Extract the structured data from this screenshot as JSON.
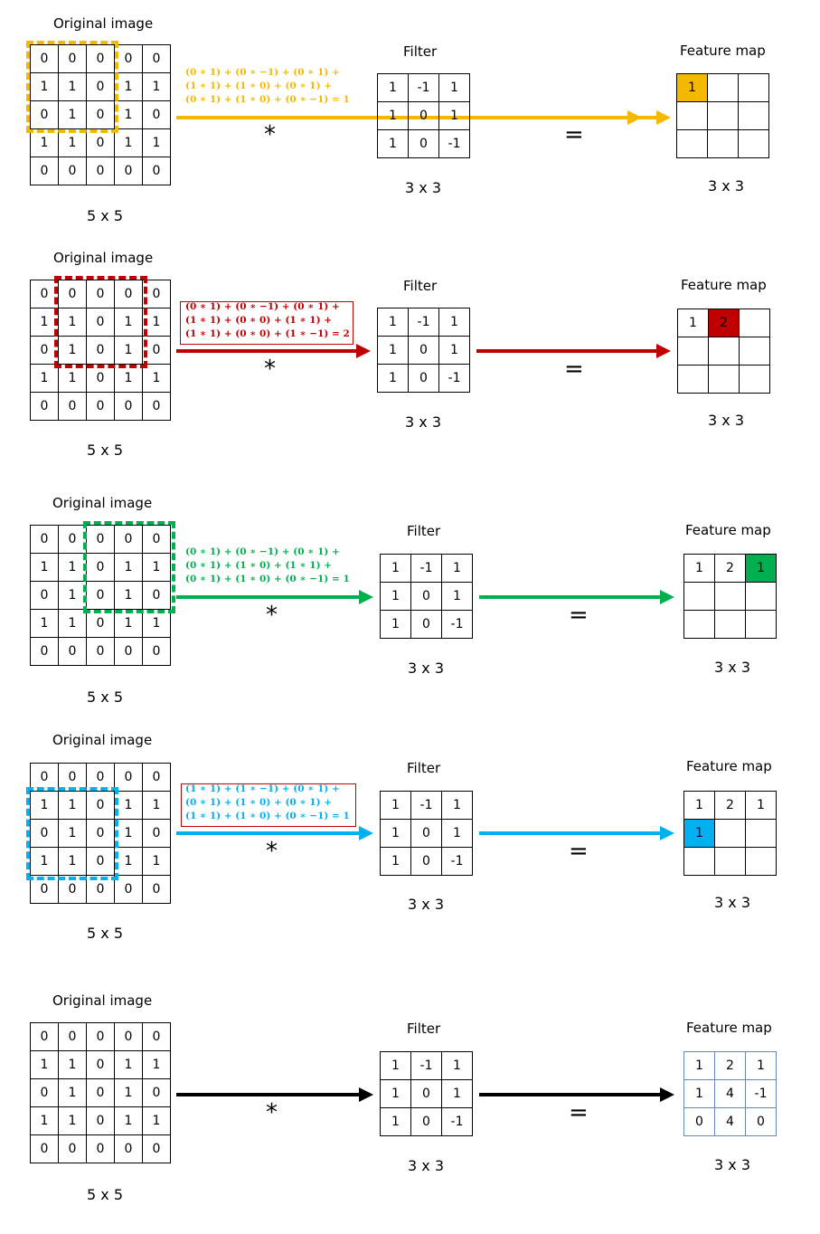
{
  "labels": {
    "original": "Original image",
    "filter": "Filter",
    "feature": "Feature map",
    "dim5": "5 x 5",
    "dim3": "3 x 3",
    "mult": "*",
    "equals": "="
  },
  "image": [
    [
      0,
      0,
      0,
      0,
      0
    ],
    [
      1,
      1,
      0,
      1,
      1
    ],
    [
      0,
      1,
      0,
      1,
      0
    ],
    [
      1,
      1,
      0,
      1,
      1
    ],
    [
      0,
      0,
      0,
      0,
      0
    ]
  ],
  "filter": [
    [
      1,
      -1,
      1
    ],
    [
      1,
      0,
      1
    ],
    [
      1,
      0,
      -1
    ]
  ],
  "colors": {
    "orange": "#f5b800",
    "red": "#c00000",
    "green": "#00b050",
    "blue": "#00b0f0",
    "black": "#000000"
  },
  "steps": [
    {
      "color_key": "orange",
      "equation": [
        "(0 ∗ 1) + (0 ∗ −1) + (0 ∗ 1) +",
        "(1 ∗ 1) + (1 ∗ 0) + (0 ∗ 1) +",
        "(0 ∗ 1) + (1 ∗ 0) + (0 ∗ −1) = 1"
      ],
      "boxed": false,
      "feature_map": [
        [
          "1",
          "",
          ""
        ],
        [
          "",
          "",
          ""
        ],
        [
          "",
          "",
          ""
        ]
      ],
      "highlight_cell": [
        0,
        0
      ],
      "window": [
        0,
        0
      ]
    },
    {
      "color_key": "red",
      "equation": [
        "(0 ∗ 1) + (0 ∗ −1) + (0 ∗ 1) +",
        "(1 ∗ 1) + (0 ∗ 0) + (1 ∗ 1) +",
        "(1 ∗ 1) + (0 ∗ 0) + (1 ∗ −1) = 2"
      ],
      "boxed": true,
      "feature_map": [
        [
          "1",
          "2",
          ""
        ],
        [
          "",
          "",
          ""
        ],
        [
          "",
          "",
          ""
        ]
      ],
      "highlight_cell": [
        0,
        1
      ],
      "window": [
        0,
        1
      ]
    },
    {
      "color_key": "green",
      "equation": [
        "(0 ∗ 1) + (0 ∗ −1) + (0 ∗ 1) +",
        "(0 ∗ 1) + (1 ∗ 0) + (1 ∗ 1) +",
        "(0 ∗ 1) + (1 ∗ 0) + (0 ∗ −1) = 1"
      ],
      "boxed": false,
      "feature_map": [
        [
          "1",
          "2",
          "1"
        ],
        [
          "",
          "",
          ""
        ],
        [
          "",
          "",
          ""
        ]
      ],
      "highlight_cell": [
        0,
        2
      ],
      "window": [
        0,
        2
      ]
    },
    {
      "color_key": "blue",
      "equation": [
        "(1 ∗ 1) + (1 ∗ −1) + (0 ∗ 1) +",
        "(0 ∗ 1) + (1 ∗ 0) + (0 ∗ 1) +",
        "(1 ∗ 1) + (1 ∗ 0) + (0 ∗ −1) = 1"
      ],
      "boxed": true,
      "feature_map": [
        [
          "1",
          "2",
          "1"
        ],
        [
          "1",
          "",
          ""
        ],
        [
          "",
          "",
          ""
        ]
      ],
      "highlight_cell": [
        1,
        0
      ],
      "window": [
        1,
        0
      ]
    },
    {
      "color_key": "black",
      "equation": [],
      "boxed": false,
      "feature_map": [
        [
          "1",
          "2",
          "1"
        ],
        [
          "1",
          "4",
          "-1"
        ],
        [
          "0",
          "4",
          "0"
        ]
      ],
      "highlight_cell": null,
      "window": null
    }
  ]
}
